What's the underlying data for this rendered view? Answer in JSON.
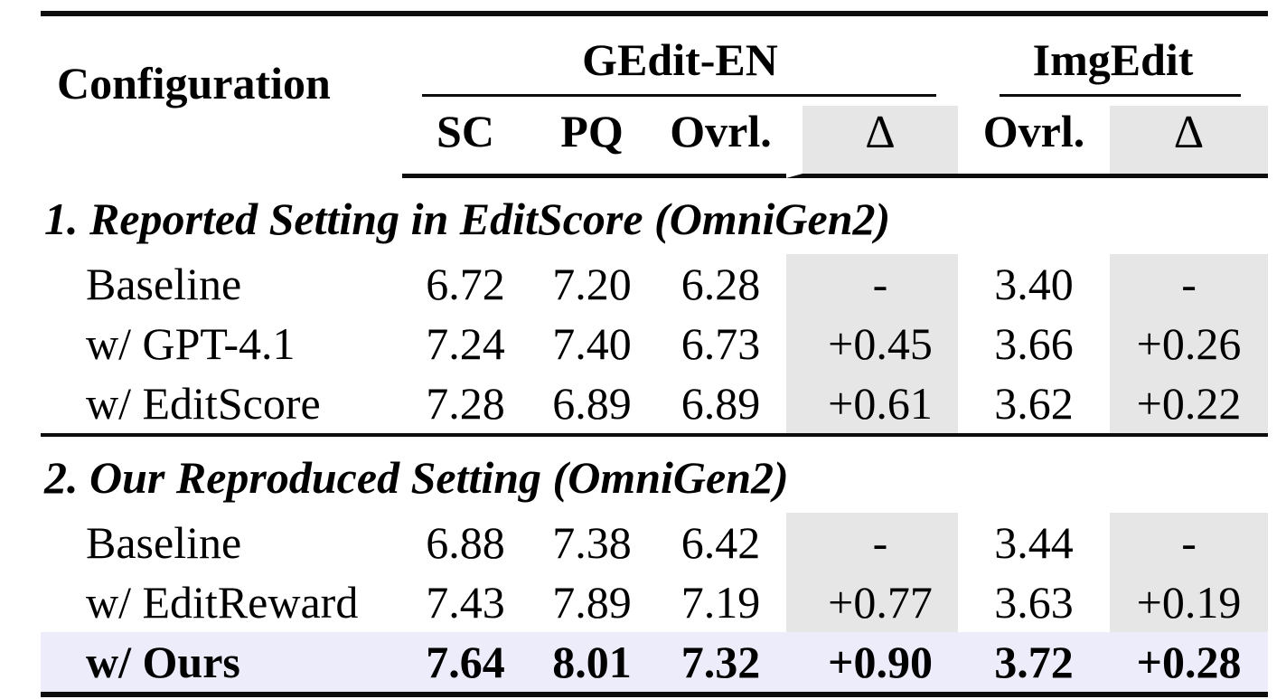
{
  "table": {
    "colors": {
      "delta_column_bg": "#e6e6e6",
      "highlight_row_bg": "#ececfa",
      "rule_color": "#0d0d0d"
    },
    "header": {
      "configuration_label": "Configuration",
      "groups": [
        {
          "label": "GEdit-EN"
        },
        {
          "label": "ImgEdit"
        }
      ],
      "subcolumns": [
        "SC",
        "PQ",
        "Ovrl.",
        "Δ",
        "Ovrl.",
        "Δ"
      ]
    },
    "sections": [
      {
        "title": "1. Reported Setting in EditScore (OmniGen2)",
        "rows": [
          {
            "config": "Baseline",
            "sc": "6.72",
            "pq": "7.20",
            "ovrl": "6.28",
            "delta": "-",
            "img_ovrl": "3.40",
            "img_delta": "-",
            "bold": false,
            "highlight": false
          },
          {
            "config": "w/ GPT-4.1",
            "sc": "7.24",
            "pq": "7.40",
            "ovrl": "6.73",
            "delta": "+0.45",
            "img_ovrl": "3.66",
            "img_delta": "+0.26",
            "bold": false,
            "highlight": false
          },
          {
            "config": "w/ EditScore",
            "sc": "7.28",
            "pq": "6.89",
            "ovrl": "6.89",
            "delta": "+0.61",
            "img_ovrl": "3.62",
            "img_delta": "+0.22",
            "bold": false,
            "highlight": false
          }
        ]
      },
      {
        "title": "2. Our Reproduced Setting (OmniGen2)",
        "rows": [
          {
            "config": "Baseline",
            "sc": "6.88",
            "pq": "7.38",
            "ovrl": "6.42",
            "delta": "-",
            "img_ovrl": "3.44",
            "img_delta": "-",
            "bold": false,
            "highlight": false
          },
          {
            "config": "w/ EditReward",
            "sc": "7.43",
            "pq": "7.89",
            "ovrl": "7.19",
            "delta": "+0.77",
            "img_ovrl": "3.63",
            "img_delta": "+0.19",
            "bold": false,
            "highlight": false
          },
          {
            "config": "w/ Ours",
            "sc": "7.64",
            "pq": "8.01",
            "ovrl": "7.32",
            "delta": "+0.90",
            "img_ovrl": "3.72",
            "img_delta": "+0.28",
            "bold": true,
            "highlight": true
          }
        ]
      }
    ]
  }
}
